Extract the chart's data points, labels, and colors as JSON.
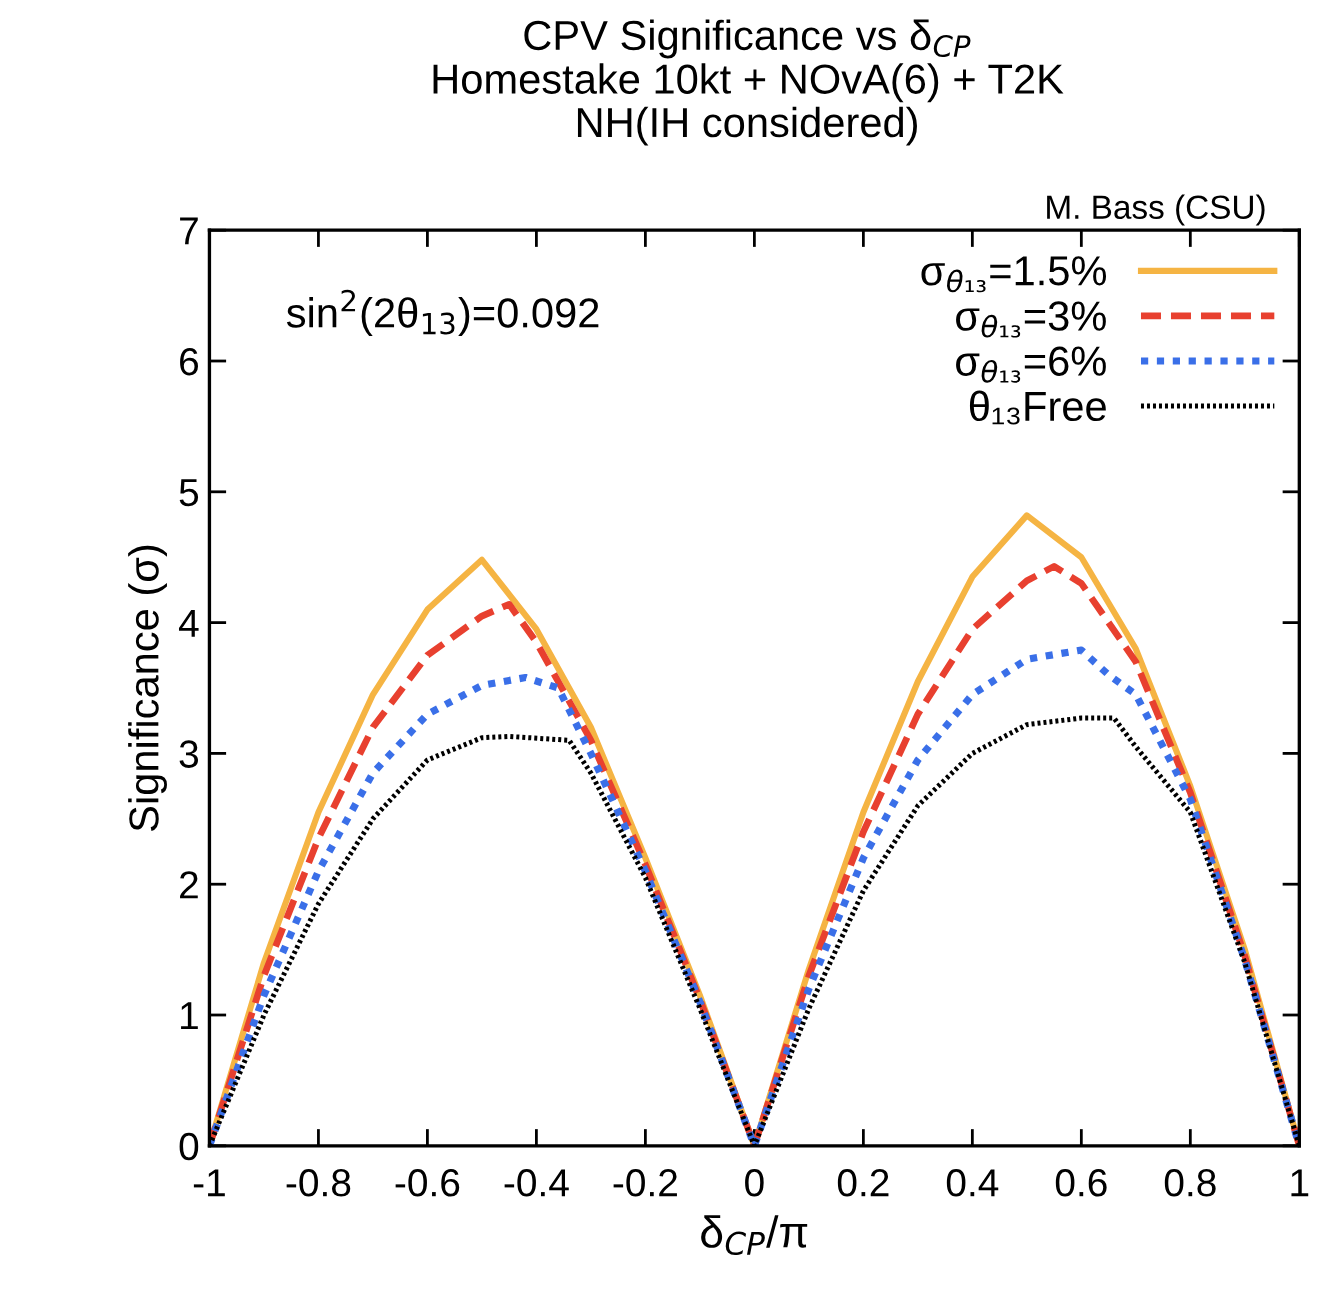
{
  "chart_data": {
    "type": "line",
    "title": "CPV Significance vs δ$_{CP}$\nHomestake 10kt + NOvA(6) + T2K\nNH(IH considered)",
    "xlabel": "δ$_{CP}$/π",
    "ylabel": "Significance (σ)",
    "annotations": [
      "M. Bass (CSU)",
      "sin$^{2}$(2θ$_{13}$)=0.092"
    ],
    "xlim": [
      -1,
      1
    ],
    "ylim": [
      0,
      7
    ],
    "xticks": [
      -1,
      -0.8,
      -0.6,
      -0.4,
      -0.2,
      0,
      0.2,
      0.4,
      0.6,
      0.8,
      1
    ],
    "yticks": [
      0,
      1,
      2,
      3,
      4,
      5,
      6,
      7
    ],
    "grid": false,
    "legend": "top right",
    "series": [
      {
        "name": "σ$_{θ₁₃}$=1.5%",
        "color": "#f5b443",
        "line_style": "solid",
        "x": [
          -1,
          -0.9,
          -0.8,
          -0.7,
          -0.6,
          -0.5,
          -0.4,
          -0.3,
          -0.2,
          -0.1,
          0,
          0.1,
          0.2,
          0.3,
          0.4,
          0.5,
          0.6,
          0.7,
          0.8,
          0.9,
          1
        ],
        "values": [
          0,
          1.4,
          2.55,
          3.45,
          4.1,
          4.48,
          3.95,
          3.2,
          2.2,
          1.15,
          0,
          1.35,
          2.55,
          3.55,
          4.35,
          4.82,
          4.5,
          3.8,
          2.75,
          1.5,
          0
        ]
      },
      {
        "name": "σ$_{θ₁₃}$=3%",
        "color": "#e8402f",
        "line_style": "dashed",
        "x": [
          -1,
          -0.9,
          -0.8,
          -0.7,
          -0.6,
          -0.5,
          -0.45,
          -0.4,
          -0.3,
          -0.2,
          -0.1,
          0,
          0.1,
          0.2,
          0.3,
          0.4,
          0.5,
          0.55,
          0.6,
          0.7,
          0.8,
          0.9,
          1
        ],
        "values": [
          0,
          1.3,
          2.35,
          3.2,
          3.75,
          4.05,
          4.14,
          3.85,
          3.1,
          2.15,
          1.12,
          0,
          1.3,
          2.4,
          3.3,
          3.95,
          4.32,
          4.43,
          4.3,
          3.7,
          2.7,
          1.45,
          0
        ]
      },
      {
        "name": "σ$_{θ₁₃}$=6%",
        "color": "#3a6fe8",
        "line_style": "dotted",
        "x": [
          -1,
          -0.9,
          -0.8,
          -0.7,
          -0.6,
          -0.5,
          -0.42,
          -0.36,
          -0.3,
          -0.2,
          -0.1,
          0,
          0.1,
          0.2,
          0.3,
          0.4,
          0.5,
          0.6,
          0.65,
          0.7,
          0.8,
          0.9,
          1
        ],
        "values": [
          0,
          1.15,
          2.1,
          2.85,
          3.3,
          3.52,
          3.58,
          3.5,
          3.0,
          2.1,
          1.1,
          0,
          1.2,
          2.2,
          2.95,
          3.45,
          3.72,
          3.79,
          3.6,
          3.45,
          2.65,
          1.42,
          0
        ]
      },
      {
        "name": "θ₁₃Free",
        "color": "#000000",
        "line_style": "dotted",
        "x": [
          -1,
          -0.9,
          -0.8,
          -0.7,
          -0.6,
          -0.5,
          -0.45,
          -0.34,
          -0.3,
          -0.2,
          -0.1,
          0,
          0.1,
          0.2,
          0.3,
          0.4,
          0.5,
          0.6,
          0.66,
          0.7,
          0.8,
          0.9,
          1
        ],
        "values": [
          0,
          1.0,
          1.85,
          2.5,
          2.95,
          3.12,
          3.13,
          3.1,
          2.85,
          2.05,
          1.05,
          0,
          1.05,
          1.95,
          2.6,
          3.0,
          3.22,
          3.27,
          3.27,
          3.05,
          2.55,
          1.4,
          0
        ]
      }
    ]
  }
}
